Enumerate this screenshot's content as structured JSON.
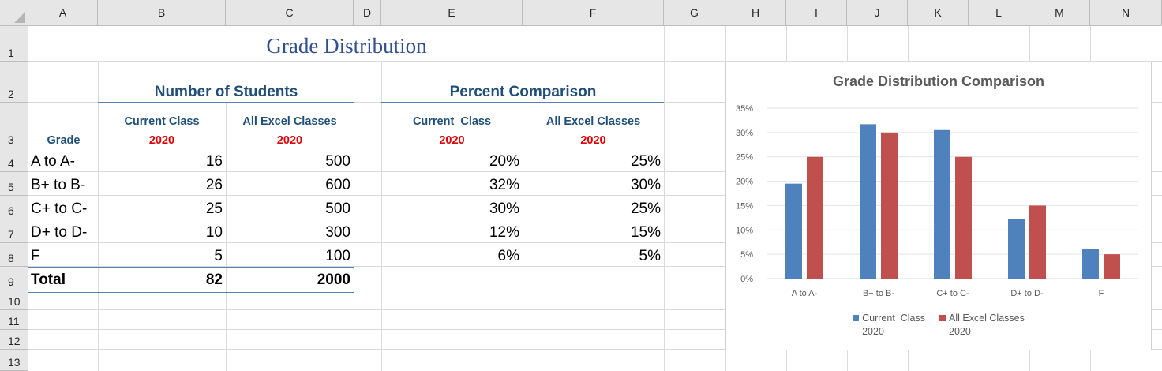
{
  "column_headers": [
    "A",
    "B",
    "C",
    "D",
    "E",
    "F",
    "G",
    "H",
    "I",
    "J",
    "K",
    "L",
    "M",
    "N"
  ],
  "row_headers": [
    "1",
    "2",
    "3",
    "4",
    "5",
    "6",
    "7",
    "8",
    "9",
    "10",
    "11",
    "12",
    "13"
  ],
  "sheet": {
    "title": "Grade Distribution",
    "section_students": "Number of Students",
    "section_percent": "Percent Comparison",
    "grade_label": "Grade",
    "col_current_class": "Current Class",
    "col_all_excel": "All Excel Classes",
    "col_current_class_pct": "Current  Class",
    "col_all_excel_pct": "All Excel Classes",
    "year": "2020",
    "rows": [
      {
        "grade": "A to A-",
        "current": "16",
        "all": "500",
        "pct_current": "20%",
        "pct_all": "25%"
      },
      {
        "grade": "B+ to B-",
        "current": "26",
        "all": "600",
        "pct_current": "32%",
        "pct_all": "30%"
      },
      {
        "grade": "C+ to C-",
        "current": "25",
        "all": "500",
        "pct_current": "30%",
        "pct_all": "25%"
      },
      {
        "grade": "D+ to D-",
        "current": "10",
        "all": "300",
        "pct_current": "12%",
        "pct_all": "15%"
      },
      {
        "grade": "F",
        "current": "5",
        "all": "100",
        "pct_current": "6%",
        "pct_all": "5%"
      }
    ],
    "total_label": "Total",
    "total_current": "82",
    "total_all": "2000"
  },
  "chart_data": {
    "type": "bar",
    "title": "Grade Distribution Comparison",
    "categories": [
      "A to A-",
      "B+ to B-",
      "C+ to C-",
      "D+ to D-",
      "F"
    ],
    "series": [
      {
        "name": "Current  Class\n2020",
        "label_line1": "Current  Class",
        "label_line2": "2020",
        "color": "#4f81bd",
        "values": [
          0.195,
          0.317,
          0.305,
          0.122,
          0.061
        ]
      },
      {
        "name": "All Excel Classes\n2020",
        "label_line1": "All Excel Classes",
        "label_line2": "2020",
        "color": "#c0504d",
        "values": [
          0.25,
          0.3,
          0.25,
          0.15,
          0.05
        ]
      }
    ],
    "ylim": [
      0,
      0.35
    ],
    "yticks": [
      "0%",
      "5%",
      "10%",
      "15%",
      "20%",
      "25%",
      "30%",
      "35%"
    ],
    "grid": true,
    "legend": "bottom"
  }
}
